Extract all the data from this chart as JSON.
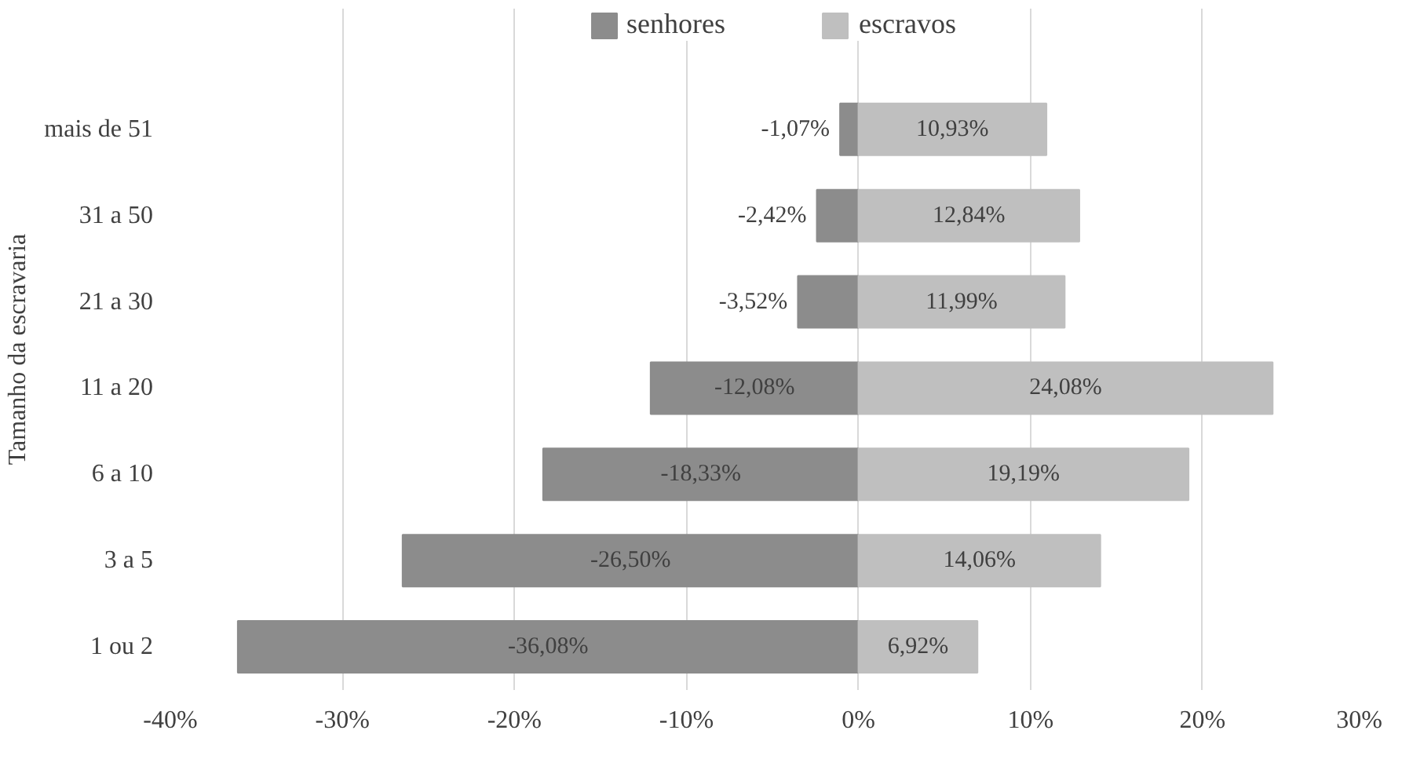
{
  "chart_data": {
    "type": "bar",
    "orientation": "horizontal",
    "stacked": true,
    "ylabel": "Tamanho da escravaria",
    "categories": [
      "mais de 51",
      "31 a 50",
      "21 a 30",
      "11 a 20",
      "6 a 10",
      "3 a 5",
      "1 ou 2"
    ],
    "series": [
      {
        "name": "senhores",
        "color": "#8c8c8c",
        "values": [
          -1.07,
          -2.42,
          -3.52,
          -12.08,
          -18.33,
          -26.5,
          -36.08
        ],
        "value_labels": [
          "-1,07%",
          "-2,42%",
          "-3,52%",
          "-12,08%",
          "-18,33%",
          "-26,50%",
          "-36,08%"
        ]
      },
      {
        "name": "escravos",
        "color": "#bfbfbf",
        "values": [
          10.93,
          12.84,
          11.99,
          24.08,
          19.19,
          14.06,
          6.92
        ],
        "value_labels": [
          "10,93%",
          "12,84%",
          "11,99%",
          "24,08%",
          "19,19%",
          "14,06%",
          "6,92%"
        ]
      }
    ],
    "xlim": [
      -40,
      30
    ],
    "xticks": [
      {
        "value": -40,
        "label": "-40%"
      },
      {
        "value": -30,
        "label": "-30%"
      },
      {
        "value": -20,
        "label": "-20%"
      },
      {
        "value": -10,
        "label": "-10%"
      },
      {
        "value": 0,
        "label": "0%"
      },
      {
        "value": 10,
        "label": "10%"
      },
      {
        "value": 20,
        "label": "20%"
      },
      {
        "value": 30,
        "label": "30%"
      }
    ],
    "grid": "x",
    "legend": "top"
  }
}
